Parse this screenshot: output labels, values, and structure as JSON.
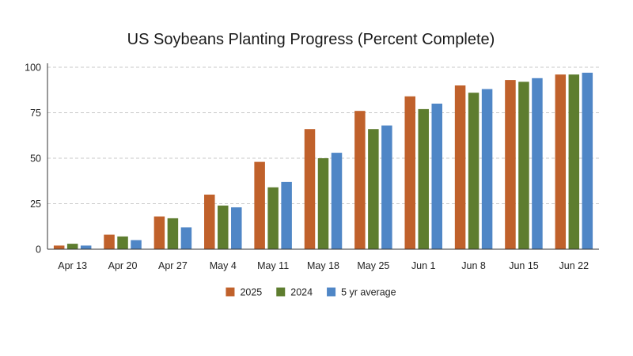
{
  "chart_data": {
    "type": "bar",
    "title": "US Soybeans Planting Progress (Percent Complete)",
    "xlabel": "",
    "ylabel": "",
    "categories": [
      "Apr 13",
      "Apr 20",
      "Apr 27",
      "May 4",
      "May 11",
      "May 18",
      "May 25",
      "Jun 1",
      "Jun 8",
      "Jun 15",
      "Jun 22"
    ],
    "series": [
      {
        "name": "2025",
        "color": "#c0612b",
        "values": [
          2,
          8,
          18,
          30,
          48,
          66,
          76,
          84,
          90,
          93,
          96
        ]
      },
      {
        "name": "2024",
        "color": "#5e7d2f",
        "values": [
          3,
          7,
          17,
          24,
          34,
          50,
          66,
          77,
          86,
          92,
          96
        ]
      },
      {
        "name": "5 yr average",
        "color": "#4f86c6",
        "values": [
          2,
          5,
          12,
          23,
          37,
          53,
          68,
          80,
          88,
          94,
          97
        ]
      }
    ],
    "ylim": [
      0,
      100
    ],
    "yticks": [
      0,
      25,
      50,
      75,
      100
    ],
    "grid": true,
    "legend_position": "bottom-center"
  }
}
